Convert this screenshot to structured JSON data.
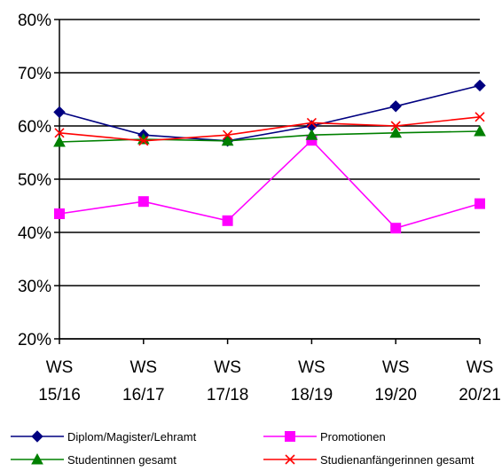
{
  "chart_data": {
    "type": "line",
    "categories": [
      [
        "WS",
        "15/16"
      ],
      [
        "WS",
        "16/17"
      ],
      [
        "WS",
        "17/18"
      ],
      [
        "WS",
        "18/19"
      ],
      [
        "WS",
        "19/20"
      ],
      [
        "WS",
        "20/21"
      ]
    ],
    "ylim": [
      0.2,
      0.8
    ],
    "yticks": [
      "20%",
      "30%",
      "40%",
      "50%",
      "60%",
      "70%",
      "80%"
    ],
    "grid": true,
    "legend_position": "bottom",
    "series": [
      {
        "name": "Diplom/Magister/Lehramt",
        "color": "#000080",
        "marker": "diamond",
        "values": [
          0.626,
          0.583,
          0.572,
          0.6,
          0.637,
          0.676
        ]
      },
      {
        "name": "Promotionen",
        "color": "#ff00ff",
        "marker": "square",
        "values": [
          0.435,
          0.458,
          0.422,
          0.573,
          0.408,
          0.454
        ]
      },
      {
        "name": "Studentinnen gesamt",
        "color": "#008000",
        "marker": "triangle",
        "values": [
          0.57,
          0.575,
          0.572,
          0.583,
          0.587,
          0.59
        ]
      },
      {
        "name": "Studienanfängerinnen gesamt",
        "color": "#ff0000",
        "marker": "x",
        "values": [
          0.587,
          0.572,
          0.583,
          0.606,
          0.6,
          0.617
        ]
      }
    ]
  }
}
